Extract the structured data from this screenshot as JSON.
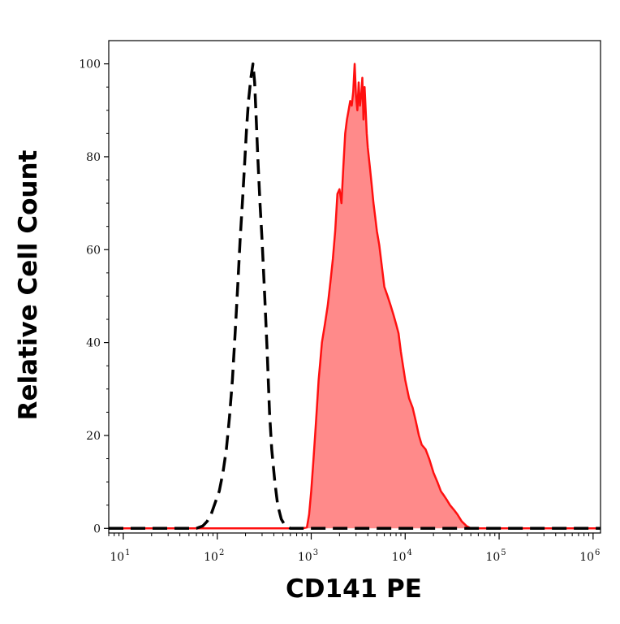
{
  "chart_data": {
    "type": "area",
    "xlabel": "CD141 PE",
    "ylabel": "Relative Cell Count",
    "xscale": "log",
    "xlim": [
      7,
      1200000
    ],
    "ylim": [
      -1,
      105
    ],
    "grid": false,
    "legend": "none",
    "x_ticks": [
      {
        "value": 10,
        "base": "10",
        "exp": "1"
      },
      {
        "value": 100,
        "base": "10",
        "exp": "2"
      },
      {
        "value": 1000,
        "base": "10",
        "exp": "3"
      },
      {
        "value": 10000,
        "base": "10",
        "exp": "4"
      },
      {
        "value": 100000,
        "base": "10",
        "exp": "5"
      },
      {
        "value": 1000000,
        "base": "10",
        "exp": "6"
      }
    ],
    "y_ticks": [
      {
        "value": 0,
        "label": "0"
      },
      {
        "value": 20,
        "label": "20"
      },
      {
        "value": 40,
        "label": "40"
      },
      {
        "value": 60,
        "label": "60"
      },
      {
        "value": 80,
        "label": "80"
      },
      {
        "value": 100,
        "label": "100"
      }
    ],
    "series": [
      {
        "style": "dashed",
        "color": "#000000",
        "fill": "none",
        "x": [
          7,
          60,
          70,
          78,
          86,
          95,
          105,
          115,
          125,
          135,
          145,
          155,
          165,
          175,
          185,
          195,
          205,
          215,
          228,
          240,
          250,
          260,
          270,
          285,
          300,
          320,
          340,
          360,
          380,
          410,
          440,
          480,
          520,
          560,
          600,
          1200000
        ],
        "y": [
          0,
          0,
          0.5,
          1.5,
          3,
          5.5,
          8,
          12,
          17,
          24,
          32,
          42,
          52,
          62,
          70,
          78,
          86,
          92,
          97,
          100,
          96,
          88,
          80,
          70,
          62,
          50,
          38,
          25,
          17,
          10,
          5,
          2,
          0.8,
          0.3,
          0,
          0
        ]
      },
      {
        "style": "solid-filled",
        "color": "#ff1010",
        "fill": "#ff8a8a",
        "x": [
          7,
          800,
          900,
          950,
          1000,
          1050,
          1100,
          1150,
          1200,
          1250,
          1300,
          1400,
          1500,
          1600,
          1700,
          1800,
          1900,
          2000,
          2100,
          2200,
          2300,
          2400,
          2500,
          2600,
          2700,
          2800,
          2900,
          3000,
          3100,
          3200,
          3300,
          3400,
          3500,
          3600,
          3700,
          3800,
          3900,
          4000,
          4200,
          4400,
          4600,
          4800,
          5000,
          5300,
          5600,
          6000,
          6500,
          7000,
          7500,
          8000,
          8500,
          9000,
          10000,
          11000,
          12000,
          13000,
          14000,
          15000,
          16500,
          18000,
          20000,
          22000,
          24000,
          26000,
          28000,
          30000,
          33000,
          36000,
          40000,
          45000,
          50000,
          1200000
        ],
        "y": [
          0,
          0,
          0.2,
          3,
          8,
          14,
          20,
          26,
          32,
          36,
          40,
          44,
          48,
          53,
          58,
          64,
          72,
          73,
          70,
          78,
          85,
          88,
          90,
          92,
          91,
          94,
          100,
          93,
          90,
          96,
          91,
          93,
          97,
          88,
          95,
          90,
          85,
          82,
          78,
          74,
          70,
          67,
          64,
          61,
          57,
          52,
          50,
          48,
          46,
          44,
          42,
          38,
          32,
          28,
          26,
          23,
          20,
          18,
          17,
          15,
          12,
          10,
          8,
          7,
          6,
          5,
          4,
          3,
          1.5,
          0.5,
          0,
          0
        ]
      }
    ]
  }
}
